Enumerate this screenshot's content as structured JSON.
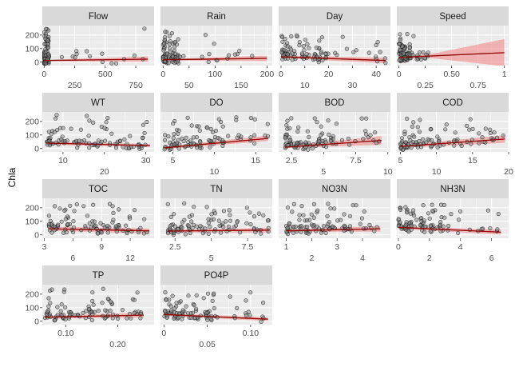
{
  "chart_data": {
    "type": "scatter",
    "ylabel": "Chla",
    "xlabel": "",
    "y_ticks": [
      0,
      100,
      200
    ],
    "ylim": [
      -25,
      270
    ],
    "colors": {
      "panel": "#ebebeb",
      "strip": "#d9d9d9",
      "grid": "#ffffff",
      "point_fill": "#8c8c8c",
      "point_stroke": "#000000",
      "line": "#8b0000",
      "ribbon": "#f08080"
    },
    "panels": [
      {
        "name": "Flow",
        "xlim": [
          -15,
          900
        ],
        "xticks": [
          0,
          250,
          500,
          750
        ],
        "dense": [
          0,
          40
        ],
        "sparse": [
          40,
          850
        ],
        "ymax": 260,
        "trend": [
          [
            0,
            12
          ],
          [
            850,
            22
          ]
        ],
        "ci": [
          [
            0,
            8,
            16
          ],
          [
            850,
            2,
            42
          ]
        ]
      },
      {
        "name": "Rain",
        "xlim": [
          -5,
          210
        ],
        "xticks": [
          0,
          50,
          100,
          150,
          200
        ],
        "dense": [
          0,
          30
        ],
        "sparse": [
          30,
          200
        ],
        "ymax": 250,
        "trend": [
          [
            0,
            18
          ],
          [
            200,
            28
          ]
        ],
        "ci": [
          [
            0,
            14,
            22
          ],
          [
            200,
            8,
            48
          ]
        ]
      },
      {
        "name": "Day",
        "xlim": [
          -1,
          46
        ],
        "xticks": [
          0,
          10,
          20,
          30,
          40
        ],
        "dense": [
          0,
          20
        ],
        "sparse": [
          20,
          44
        ],
        "ymax": 200,
        "trend": [
          [
            0,
            40
          ],
          [
            44,
            12
          ]
        ],
        "ci": [
          [
            0,
            30,
            50
          ],
          [
            44,
            -8,
            32
          ]
        ]
      },
      {
        "name": "Speed",
        "xlim": [
          -0.02,
          1.04
        ],
        "xticks": [
          0.0,
          0.25,
          0.5,
          0.75,
          1.0
        ],
        "dense": [
          0,
          0.12
        ],
        "sparse": [
          0.12,
          0.3
        ],
        "ymax": 210,
        "trend": [
          [
            0,
            35
          ],
          [
            1.0,
            70
          ]
        ],
        "ci": [
          [
            0,
            28,
            42
          ],
          [
            0.3,
            30,
            60
          ],
          [
            1.0,
            -30,
            170
          ]
        ]
      },
      {
        "name": "WT",
        "xlim": [
          5,
          32
        ],
        "xticks": [
          10,
          20,
          30
        ],
        "dense": [
          6,
          31
        ],
        "sparse": [
          6,
          31
        ],
        "ymax": 250,
        "trend": [
          [
            6,
            40
          ],
          [
            31,
            22
          ]
        ],
        "ci": [
          [
            6,
            28,
            52
          ],
          [
            31,
            12,
            32
          ]
        ]
      },
      {
        "name": "DO",
        "xlim": [
          3.5,
          17
        ],
        "xticks": [
          5,
          10,
          15
        ],
        "dense": [
          4,
          12
        ],
        "sparse": [
          12,
          16.5
        ],
        "ymax": 240,
        "trend": [
          [
            4,
            5
          ],
          [
            16.5,
            75
          ]
        ],
        "ci": [
          [
            4,
            -5,
            15
          ],
          [
            16.5,
            55,
            95
          ]
        ]
      },
      {
        "name": "BOD",
        "xlim": [
          1.5,
          10.2
        ],
        "xticks": [
          2.5,
          5.0,
          7.5,
          10.0
        ],
        "dense": [
          2,
          6
        ],
        "sparse": [
          6,
          9.5
        ],
        "ymax": 240,
        "trend": [
          [
            2,
            10
          ],
          [
            9.5,
            60
          ]
        ],
        "ci": [
          [
            2,
            2,
            18
          ],
          [
            9.5,
            28,
            92
          ]
        ]
      },
      {
        "name": "COD",
        "xlim": [
          4.5,
          20
        ],
        "xticks": [
          5,
          10,
          15,
          20
        ],
        "dense": [
          5,
          15
        ],
        "sparse": [
          15,
          19.5
        ],
        "ymax": 220,
        "trend": [
          [
            5,
            15
          ],
          [
            19.5,
            70
          ]
        ],
        "ci": [
          [
            5,
            5,
            25
          ],
          [
            19.5,
            42,
            98
          ]
        ]
      },
      {
        "name": "TOC",
        "xlim": [
          2.8,
          14.5
        ],
        "xticks": [
          3,
          6,
          9,
          12
        ],
        "dense": [
          3.5,
          11
        ],
        "sparse": [
          11,
          14
        ],
        "ymax": 230,
        "trend": [
          [
            3.5,
            45
          ],
          [
            14,
            30
          ]
        ],
        "ci": [
          [
            3.5,
            30,
            60
          ],
          [
            14,
            12,
            48
          ]
        ]
      },
      {
        "name": "TN",
        "xlim": [
          1.5,
          9.2
        ],
        "xticks": [
          2.5,
          5.0,
          7.5
        ],
        "dense": [
          2,
          7.5
        ],
        "sparse": [
          7.5,
          9
        ],
        "ymax": 240,
        "trend": [
          [
            2,
            28
          ],
          [
            9,
            35
          ]
        ],
        "ci": [
          [
            2,
            18,
            38
          ],
          [
            9,
            18,
            52
          ]
        ]
      },
      {
        "name": "NO3N",
        "xlim": [
          0.7,
          5.1
        ],
        "xticks": [
          1,
          2,
          3,
          4
        ],
        "dense": [
          1,
          3.5
        ],
        "sparse": [
          3.5,
          4.7
        ],
        "ymax": 240,
        "trend": [
          [
            1,
            30
          ],
          [
            4.7,
            45
          ]
        ],
        "ci": [
          [
            1,
            20,
            40
          ],
          [
            4.7,
            25,
            65
          ]
        ]
      },
      {
        "name": "NH3N",
        "xlim": [
          -0.1,
          7.1
        ],
        "xticks": [
          0,
          2,
          4,
          6
        ],
        "dense": [
          0,
          3
        ],
        "sparse": [
          3,
          6.6
        ],
        "ymax": 230,
        "trend": [
          [
            0,
            55
          ],
          [
            6.6,
            20
          ]
        ],
        "ci": [
          [
            0,
            45,
            65
          ],
          [
            6.6,
            2,
            38
          ]
        ]
      },
      {
        "name": "TP",
        "xlim": [
          0.055,
          0.27
        ],
        "xticks": [
          0.1,
          0.2
        ],
        "dense": [
          0.06,
          0.2
        ],
        "sparse": [
          0.2,
          0.25
        ],
        "ymax": 240,
        "trend": [
          [
            0.06,
            30
          ],
          [
            0.25,
            45
          ]
        ],
        "ci": [
          [
            0.06,
            20,
            40
          ],
          [
            0.25,
            28,
            62
          ]
        ]
      },
      {
        "name": "PO4P",
        "xlim": [
          -0.004,
          0.125
        ],
        "xticks": [
          0.0,
          0.05,
          0.1
        ],
        "dense": [
          0,
          0.06
        ],
        "sparse": [
          0.06,
          0.12
        ],
        "ymax": 220,
        "trend": [
          [
            0,
            50
          ],
          [
            0.12,
            15
          ]
        ],
        "ci": [
          [
            0,
            40,
            60
          ],
          [
            0.12,
            2,
            28
          ]
        ]
      }
    ]
  }
}
